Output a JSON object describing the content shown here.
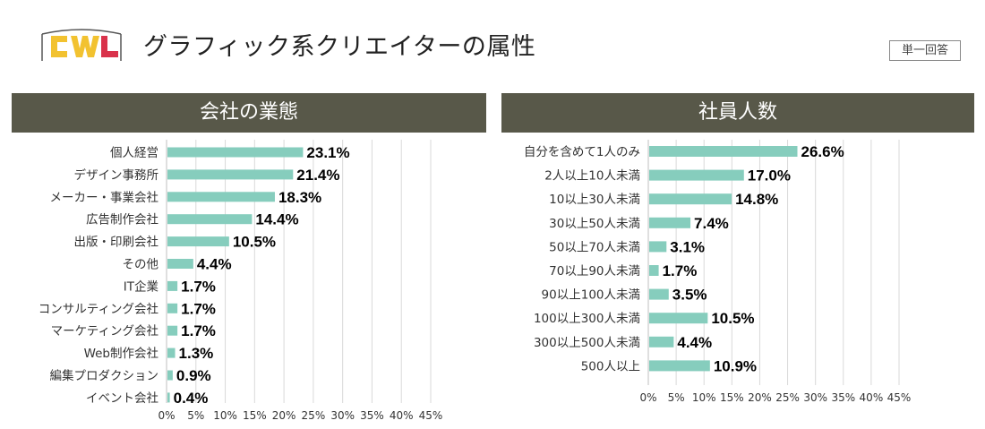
{
  "page": {
    "title": "グラフィック系クリエイターの属性",
    "answer_type": "単一回答",
    "logo_text": "CWL"
  },
  "colors": {
    "bar": "#86cdbd",
    "header_bg": "#585849",
    "logo_yellow": "#f2c230",
    "logo_red": "#d9324b"
  },
  "chart_data": [
    {
      "type": "bar",
      "orientation": "horizontal",
      "title": "会社の業態",
      "categories": [
        "個人経営",
        "デザイン事務所",
        "メーカー・事業会社",
        "広告制作会社",
        "出版・印刷会社",
        "その他",
        "IT企業",
        "コンサルティング会社",
        "マーケティング会社",
        "Web制作会社",
        "編集プロダクション",
        "イベント会社"
      ],
      "values": [
        23.1,
        21.4,
        18.3,
        14.4,
        10.5,
        4.4,
        1.7,
        1.7,
        1.7,
        1.3,
        0.9,
        0.4
      ],
      "value_labels": [
        "23.1%",
        "21.4%",
        "18.3%",
        "14.4%",
        "10.5%",
        "4.4%",
        "1.7%",
        "1.7%",
        "1.7%",
        "1.3%",
        "0.9%",
        "0.4%"
      ],
      "xlim": [
        0,
        45
      ],
      "xticks": [
        "0%",
        "5%",
        "10%",
        "15%",
        "20%",
        "25%",
        "30%",
        "35%",
        "40%",
        "45%"
      ],
      "grid": true
    },
    {
      "type": "bar",
      "orientation": "horizontal",
      "title": "社員人数",
      "categories": [
        "自分を含めて1人のみ",
        "2人以上10人未満",
        "10以上30人未満",
        "30以上50人未満",
        "50以上70人未満",
        "70以上90人未満",
        "90以上100人未満",
        "100以上300人未満",
        "300以上500人未満",
        "500人以上"
      ],
      "values": [
        26.6,
        17.0,
        14.8,
        7.4,
        3.1,
        1.7,
        3.5,
        10.5,
        4.4,
        10.9
      ],
      "value_labels": [
        "26.6%",
        "17.0%",
        "14.8%",
        "7.4%",
        "3.1%",
        "1.7%",
        "3.5%",
        "10.5%",
        "4.4%",
        "10.9%"
      ],
      "xlim": [
        0,
        45
      ],
      "xticks": [
        "0%",
        "5%",
        "10%",
        "15%",
        "20%",
        "25%",
        "30%",
        "35%",
        "40%",
        "45%"
      ],
      "grid": true
    }
  ]
}
